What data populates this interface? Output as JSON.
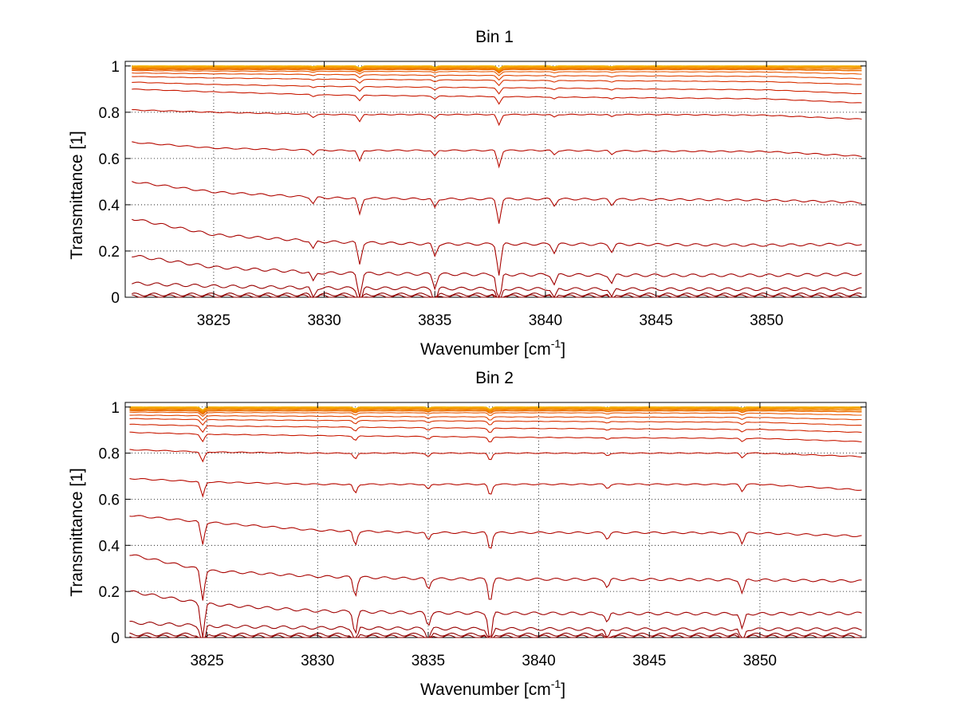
{
  "chart_data": [
    {
      "type": "line",
      "title": "Bin 1",
      "xlabel": "Wavenumber [cm",
      "xlabel_sup": "-1",
      "xlabel_end": "]",
      "ylabel": "Transmittance [1]",
      "xlim": [
        3821,
        3854.5
      ],
      "ylim": [
        0,
        1.02
      ],
      "grid": true,
      "xticks": [
        3825,
        3830,
        3835,
        3840,
        3845,
        3850
      ],
      "xtick_labels": [
        "3825",
        "3830",
        "3835",
        "3840",
        "3845",
        "3850"
      ],
      "yticks": [
        0,
        0.2,
        0.4,
        0.6,
        0.8,
        1
      ],
      "ytick_labels": [
        "0",
        "0.2",
        "0.4",
        "0.6",
        "0.8",
        "1"
      ],
      "x_sample": [
        3821.3,
        3825,
        3830,
        3835,
        3840,
        3845,
        3850,
        3854.3
      ],
      "absorption_lines": [
        {
          "x": 3829.5,
          "depth": 0.35
        },
        {
          "x": 3831.6,
          "depth": 0.9
        },
        {
          "x": 3835.0,
          "depth": 0.5
        },
        {
          "x": 3837.9,
          "depth": 1.3
        },
        {
          "x": 3840.4,
          "depth": 0.35
        },
        {
          "x": 3843.0,
          "depth": 0.3
        }
      ],
      "series": [
        {
          "values": [
            1.0,
            1.0,
            1.0,
            1.0,
            1.0,
            1.0,
            1.0,
            1.0
          ],
          "color": "#f5b400"
        },
        {
          "values": [
            0.995,
            0.995,
            0.995,
            0.995,
            0.995,
            0.995,
            0.995,
            0.995
          ],
          "color": "#f39a00"
        },
        {
          "values": [
            0.99,
            0.99,
            0.99,
            0.99,
            0.99,
            0.99,
            0.99,
            0.988
          ],
          "color": "#f08400"
        },
        {
          "values": [
            0.985,
            0.985,
            0.985,
            0.985,
            0.985,
            0.985,
            0.985,
            0.98
          ],
          "color": "#ec6e00"
        },
        {
          "values": [
            0.98,
            0.978,
            0.977,
            0.976,
            0.975,
            0.975,
            0.974,
            0.965
          ],
          "color": "#e85800"
        },
        {
          "values": [
            0.97,
            0.966,
            0.963,
            0.96,
            0.958,
            0.957,
            0.955,
            0.945
          ],
          "color": "#e04400"
        },
        {
          "values": [
            0.955,
            0.948,
            0.943,
            0.94,
            0.937,
            0.935,
            0.932,
            0.92
          ],
          "color": "#d83200"
        },
        {
          "values": [
            0.93,
            0.92,
            0.912,
            0.908,
            0.905,
            0.9,
            0.897,
            0.88
          ],
          "color": "#d02400"
        },
        {
          "values": [
            0.9,
            0.888,
            0.875,
            0.87,
            0.866,
            0.862,
            0.858,
            0.84
          ],
          "color": "#c81800"
        },
        {
          "values": [
            0.81,
            0.8,
            0.79,
            0.79,
            0.79,
            0.79,
            0.787,
            0.77
          ],
          "color": "#c01000"
        },
        {
          "values": [
            0.67,
            0.645,
            0.635,
            0.635,
            0.635,
            0.632,
            0.63,
            0.61
          ],
          "color": "#b80a00"
        },
        {
          "values": [
            0.5,
            0.455,
            0.43,
            0.425,
            0.425,
            0.423,
            0.42,
            0.41
          ],
          "color": "#b00600"
        },
        {
          "values": [
            0.34,
            0.27,
            0.24,
            0.23,
            0.23,
            0.228,
            0.225,
            0.23
          ],
          "color": "#a80300"
        },
        {
          "values": [
            0.18,
            0.13,
            0.105,
            0.1,
            0.097,
            0.095,
            0.095,
            0.1
          ],
          "color": "#a00000"
        },
        {
          "values": [
            0.06,
            0.048,
            0.04,
            0.038,
            0.036,
            0.035,
            0.035,
            0.035
          ],
          "color": "#980000"
        },
        {
          "values": [
            0.012,
            0.012,
            0.012,
            0.012,
            0.012,
            0.012,
            0.012,
            0.012
          ],
          "color": "#900000"
        },
        {
          "values": [
            0.004,
            0.004,
            0.004,
            0.004,
            0.004,
            0.004,
            0.004,
            0.004
          ],
          "color": "#880000"
        }
      ]
    },
    {
      "type": "line",
      "title": "Bin 2",
      "xlabel": "Wavenumber [cm",
      "xlabel_sup": "-1",
      "xlabel_end": "]",
      "ylabel": "Transmittance [1]",
      "xlim": [
        3821.3,
        3854.8
      ],
      "ylim": [
        0,
        1.02
      ],
      "grid": true,
      "xticks": [
        3825,
        3830,
        3835,
        3840,
        3845,
        3850
      ],
      "xtick_labels": [
        "3825",
        "3830",
        "3835",
        "3840",
        "3845",
        "3850"
      ],
      "yticks": [
        0,
        0.2,
        0.4,
        0.6,
        0.8,
        1
      ],
      "ytick_labels": [
        "0",
        "0.2",
        "0.4",
        "0.6",
        "0.8",
        "1"
      ],
      "x_sample": [
        3821.5,
        3825,
        3830,
        3835,
        3840,
        3845,
        3850,
        3854.6
      ],
      "absorption_lines": [
        {
          "x": 3824.8,
          "depth": 1.3
        },
        {
          "x": 3831.7,
          "depth": 0.8
        },
        {
          "x": 3835.0,
          "depth": 0.45
        },
        {
          "x": 3837.8,
          "depth": 1.0
        },
        {
          "x": 3843.1,
          "depth": 0.35
        },
        {
          "x": 3849.2,
          "depth": 0.6
        }
      ],
      "series": [
        {
          "values": [
            1.0,
            1.0,
            1.0,
            1.0,
            1.0,
            1.0,
            1.0,
            1.0
          ],
          "color": "#f5b400"
        },
        {
          "values": [
            0.995,
            0.995,
            0.995,
            0.995,
            0.995,
            0.995,
            0.995,
            0.995
          ],
          "color": "#f39a00"
        },
        {
          "values": [
            0.99,
            0.99,
            0.99,
            0.99,
            0.99,
            0.99,
            0.99,
            0.988
          ],
          "color": "#f08400"
        },
        {
          "values": [
            0.985,
            0.984,
            0.984,
            0.984,
            0.984,
            0.984,
            0.984,
            0.98
          ],
          "color": "#ec6e00"
        },
        {
          "values": [
            0.978,
            0.976,
            0.975,
            0.975,
            0.975,
            0.974,
            0.973,
            0.965
          ],
          "color": "#e85800"
        },
        {
          "values": [
            0.965,
            0.962,
            0.96,
            0.958,
            0.957,
            0.956,
            0.955,
            0.945
          ],
          "color": "#e04400"
        },
        {
          "values": [
            0.95,
            0.945,
            0.942,
            0.94,
            0.938,
            0.936,
            0.934,
            0.92
          ],
          "color": "#d83200"
        },
        {
          "values": [
            0.925,
            0.918,
            0.914,
            0.91,
            0.907,
            0.905,
            0.903,
            0.89
          ],
          "color": "#d02400"
        },
        {
          "values": [
            0.89,
            0.882,
            0.876,
            0.872,
            0.868,
            0.866,
            0.864,
            0.85
          ],
          "color": "#c81800"
        },
        {
          "values": [
            0.815,
            0.805,
            0.8,
            0.8,
            0.8,
            0.8,
            0.8,
            0.785
          ],
          "color": "#c01000"
        },
        {
          "values": [
            0.69,
            0.675,
            0.665,
            0.665,
            0.665,
            0.665,
            0.665,
            0.64
          ],
          "color": "#b80a00"
        },
        {
          "values": [
            0.53,
            0.5,
            0.465,
            0.455,
            0.455,
            0.455,
            0.453,
            0.44
          ],
          "color": "#b00600"
        },
        {
          "values": [
            0.36,
            0.29,
            0.265,
            0.255,
            0.253,
            0.252,
            0.25,
            0.245
          ],
          "color": "#a80300"
        },
        {
          "values": [
            0.2,
            0.145,
            0.115,
            0.107,
            0.105,
            0.104,
            0.103,
            0.105
          ],
          "color": "#a00000"
        },
        {
          "values": [
            0.065,
            0.05,
            0.042,
            0.039,
            0.037,
            0.036,
            0.036,
            0.036
          ],
          "color": "#980000"
        },
        {
          "values": [
            0.014,
            0.013,
            0.013,
            0.013,
            0.013,
            0.013,
            0.013,
            0.013
          ],
          "color": "#900000"
        },
        {
          "values": [
            0.004,
            0.004,
            0.004,
            0.004,
            0.004,
            0.004,
            0.004,
            0.004
          ],
          "color": "#880000"
        }
      ]
    }
  ]
}
